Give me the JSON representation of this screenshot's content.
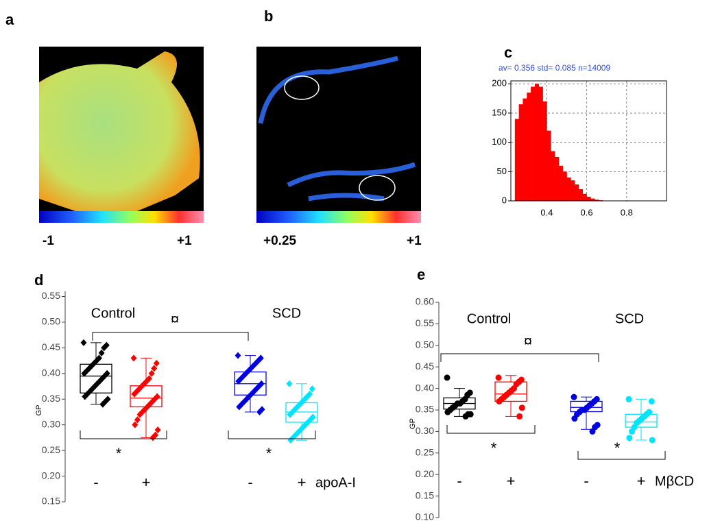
{
  "panels": {
    "a": {
      "label": "a",
      "colorbar_labels": [
        "-1",
        "+1"
      ]
    },
    "b": {
      "label": "b",
      "colorbar_labels": [
        "+0.25",
        "+1"
      ]
    },
    "c": {
      "label": "c"
    },
    "d": {
      "label": "d"
    },
    "e": {
      "label": "e"
    }
  },
  "chart_data": [
    {
      "type": "histogram",
      "title": "av=   0.356 std=   0.085 n=14009",
      "color": "#ff0000",
      "bins": [
        0.24,
        0.26,
        0.28,
        0.3,
        0.32,
        0.34,
        0.36,
        0.38,
        0.4,
        0.42,
        0.44,
        0.46,
        0.48,
        0.5,
        0.52,
        0.54,
        0.56,
        0.58,
        0.6,
        0.62,
        0.64,
        0.66,
        0.68
      ],
      "counts": [
        140,
        165,
        175,
        185,
        195,
        200,
        195,
        170,
        120,
        85,
        75,
        60,
        50,
        40,
        35,
        28,
        20,
        12,
        7,
        4,
        2,
        1
      ],
      "xlim": [
        0.22,
        1.0
      ],
      "xticks": [
        0.4,
        0.6,
        0.8
      ],
      "ylim": [
        0,
        205
      ],
      "yticks": [
        0,
        50,
        100,
        150,
        200
      ],
      "grid": true
    },
    {
      "type": "box",
      "ylabel": "GP",
      "marker": "diamond",
      "categories": [
        "-",
        "+",
        "-",
        "+"
      ],
      "group_labels": [
        "Control",
        "SCD"
      ],
      "treatment_label": "apoA-I",
      "significance": [
        "¤",
        "*",
        "*"
      ],
      "ylim": [
        0.15,
        0.56
      ],
      "yticks": [
        0.15,
        {
          "value": 0.2,
          "label": "0.20"
        },
        0.25,
        {
          "value": 0.3,
          "label": "0.30"
        },
        0.35,
        {
          "value": 0.4,
          "label": "0.40"
        },
        0.45,
        {
          "value": 0.5,
          "label": "0.50"
        },
        0.55
      ],
      "boxes": [
        {
          "color": "#000000",
          "q1": 0.362,
          "median": 0.395,
          "q3": 0.418,
          "whisker_low": 0.34,
          "whisker_high": 0.46,
          "points": [
            0.46,
            0.455,
            0.45,
            0.44,
            0.43,
            0.425,
            0.42,
            0.415,
            0.41,
            0.405,
            0.4,
            0.4,
            0.395,
            0.39,
            0.385,
            0.38,
            0.375,
            0.37,
            0.365,
            0.36,
            0.355,
            0.35,
            0.345,
            0.34
          ]
        },
        {
          "color": "#ff0000",
          "q1": 0.335,
          "median": 0.352,
          "q3": 0.376,
          "whisker_low": 0.275,
          "whisker_high": 0.43,
          "points": [
            0.43,
            0.42,
            0.41,
            0.4,
            0.39,
            0.385,
            0.38,
            0.375,
            0.37,
            0.365,
            0.36,
            0.355,
            0.35,
            0.345,
            0.34,
            0.335,
            0.33,
            0.325,
            0.32,
            0.31,
            0.3,
            0.29,
            0.28,
            0.275
          ]
        },
        {
          "color": "#0000e0",
          "q1": 0.358,
          "median": 0.38,
          "q3": 0.403,
          "whisker_low": 0.325,
          "whisker_high": 0.435,
          "points": [
            0.435,
            0.43,
            0.425,
            0.42,
            0.415,
            0.41,
            0.405,
            0.4,
            0.395,
            0.39,
            0.385,
            0.38,
            0.375,
            0.37,
            0.365,
            0.36,
            0.355,
            0.35,
            0.345,
            0.34,
            0.335,
            0.33,
            0.325
          ]
        },
        {
          "color": "#00e5ff",
          "q1": 0.305,
          "median": 0.325,
          "q3": 0.343,
          "whisker_low": 0.27,
          "whisker_high": 0.38,
          "points": [
            0.38,
            0.37,
            0.36,
            0.355,
            0.35,
            0.345,
            0.34,
            0.335,
            0.33,
            0.325,
            0.32,
            0.315,
            0.31,
            0.305,
            0.3,
            0.295,
            0.29,
            0.285,
            0.28,
            0.275,
            0.27
          ]
        }
      ]
    },
    {
      "type": "box",
      "ylabel": "GP",
      "marker": "circle",
      "categories": [
        "-",
        "+",
        "-",
        "+"
      ],
      "group_labels": [
        "Control",
        "SCD"
      ],
      "treatment_label": "MβCD",
      "significance": [
        "¤",
        "*",
        "*"
      ],
      "ylim": [
        0.1,
        0.6
      ],
      "yticks": [
        {
          "value": 0.1,
          "label": "0.10"
        },
        0.15,
        {
          "value": 0.2,
          "label": "0.20"
        },
        0.25,
        {
          "value": 0.3,
          "label": "0.30"
        },
        0.35,
        {
          "value": 0.4,
          "label": "0.40"
        },
        0.45,
        {
          "value": 0.5,
          "label": "0.50"
        },
        0.55,
        {
          "value": 0.6,
          "label": "0.60"
        }
      ],
      "boxes": [
        {
          "color": "#000000",
          "q1": 0.352,
          "median": 0.365,
          "q3": 0.378,
          "whisker_low": 0.335,
          "whisker_high": 0.4,
          "points": [
            0.425,
            0.39,
            0.385,
            0.375,
            0.37,
            0.365,
            0.365,
            0.36,
            0.355,
            0.35,
            0.345,
            0.34,
            0.34,
            0.335
          ]
        },
        {
          "color": "#ff0000",
          "q1": 0.37,
          "median": 0.387,
          "q3": 0.415,
          "whisker_low": 0.335,
          "whisker_high": 0.43,
          "points": [
            0.425,
            0.42,
            0.415,
            0.41,
            0.4,
            0.395,
            0.39,
            0.385,
            0.38,
            0.375,
            0.37,
            0.355,
            0.335
          ]
        },
        {
          "color": "#0000e0",
          "q1": 0.346,
          "median": 0.356,
          "q3": 0.37,
          "whisker_low": 0.305,
          "whisker_high": 0.38,
          "points": [
            0.38,
            0.375,
            0.37,
            0.365,
            0.36,
            0.355,
            0.35,
            0.35,
            0.345,
            0.34,
            0.33,
            0.315,
            0.31,
            0.3
          ]
        },
        {
          "color": "#00e5ff",
          "q1": 0.31,
          "median": 0.322,
          "q3": 0.34,
          "whisker_low": 0.28,
          "whisker_high": 0.375,
          "points": [
            0.375,
            0.37,
            0.345,
            0.34,
            0.335,
            0.33,
            0.325,
            0.32,
            0.31,
            0.3,
            0.285,
            0.28
          ]
        }
      ]
    }
  ]
}
